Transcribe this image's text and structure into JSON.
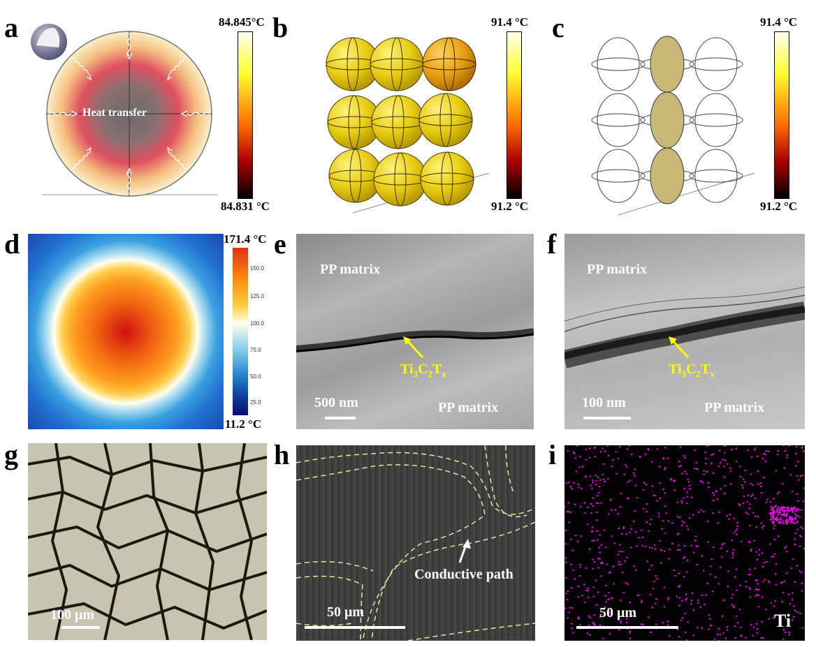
{
  "panels": {
    "a": {
      "letter": "a",
      "label": "Heat transfer",
      "cbar_max": "84.845°C",
      "cbar_min": "84.831 °C"
    },
    "b": {
      "letter": "b",
      "cbar_max": "91.4 °C",
      "cbar_min": "91.2 °C"
    },
    "c": {
      "letter": "c",
      "cbar_max": "91.4 °C",
      "cbar_min": "91.2 °C"
    },
    "d": {
      "letter": "d",
      "cbar_max": "171.4 °C",
      "cbar_min": "11.2 °C",
      "ticks": [
        "150.0",
        "125.0",
        "100.0",
        "75.0",
        "50.0",
        "25.0"
      ]
    },
    "e": {
      "letter": "e",
      "matrix_top": "PP matrix",
      "matrix_bottom": "PP matrix",
      "scale": "500 nm"
    },
    "f": {
      "letter": "f",
      "matrix_top": "PP matrix",
      "matrix_bottom": "PP matrix",
      "scale": "100 nm"
    },
    "g": {
      "letter": "g",
      "scale": "100 μm"
    },
    "h": {
      "letter": "h",
      "label": "Conductive path",
      "scale": "50 μm"
    },
    "i": {
      "letter": "i",
      "scale": "50 μm",
      "element": "Ti"
    }
  },
  "mxene": {
    "t1": "Ti",
    "s1": "3",
    "c": "C",
    "s2": "2",
    "t": "T",
    "sx": "x"
  },
  "colors": {
    "heat_low": "#000000",
    "heat_mid": "#ff4400",
    "heat_high": "#ffffee",
    "accent_yellow": "#ffff00",
    "ti_map": "#ff00ff"
  }
}
